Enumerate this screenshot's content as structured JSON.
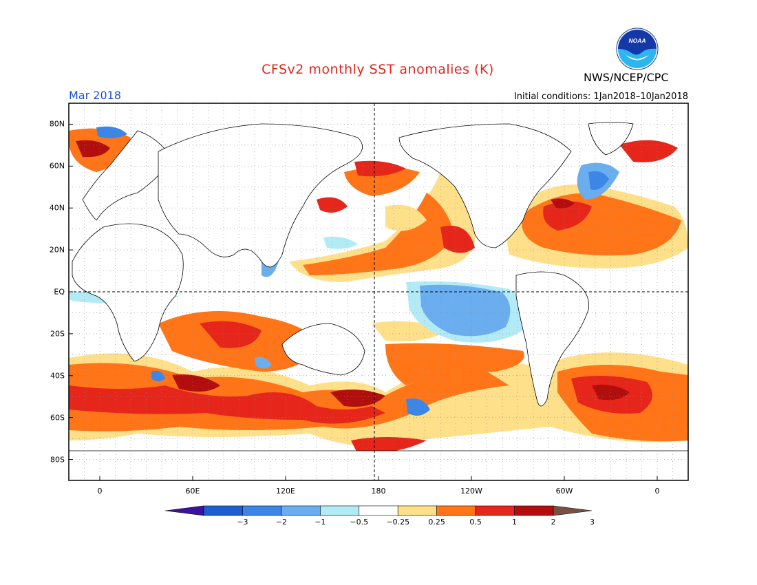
{
  "header": {
    "title": "CFSv2 monthly SST anomalies (K)",
    "agency": "NWS/NCEP/CPC",
    "month": "Mar 2018",
    "initial_conditions": "Initial conditions: 1Jan2018–10Jan2018",
    "logo_text": "NOAA"
  },
  "map": {
    "lon_range": [
      -20,
      380
    ],
    "lat_range": [
      -90,
      90
    ],
    "lat_labels": [
      {
        "lat": 80,
        "text": "80N"
      },
      {
        "lat": 60,
        "text": "60N"
      },
      {
        "lat": 40,
        "text": "40N"
      },
      {
        "lat": 20,
        "text": "20N"
      },
      {
        "lat": 0,
        "text": "EQ"
      },
      {
        "lat": -20,
        "text": "20S"
      },
      {
        "lat": -40,
        "text": "40S"
      },
      {
        "lat": -60,
        "text": "60S"
      },
      {
        "lat": -80,
        "text": "80S"
      }
    ],
    "lon_labels": [
      {
        "lon": 0,
        "text": "0"
      },
      {
        "lon": 60,
        "text": "60E"
      },
      {
        "lon": 120,
        "text": "120E"
      },
      {
        "lon": 180,
        "text": "180"
      },
      {
        "lon": 240,
        "text": "120W"
      },
      {
        "lon": 300,
        "text": "60W"
      },
      {
        "lon": 360,
        "text": "0"
      }
    ]
  },
  "colorbar": {
    "labels": [
      "−3",
      "−2",
      "−1",
      "−0.5",
      "−0.25",
      "0.25",
      "0.5",
      "1",
      "2",
      "3"
    ],
    "colors": [
      "#3a14a0",
      "#1c5fcf",
      "#3c86e6",
      "#6aaef0",
      "#b2ebf5",
      "#ffffff",
      "#ffe08a",
      "#ff7518",
      "#e6261a",
      "#b20e0e",
      "#7a5040"
    ]
  }
}
